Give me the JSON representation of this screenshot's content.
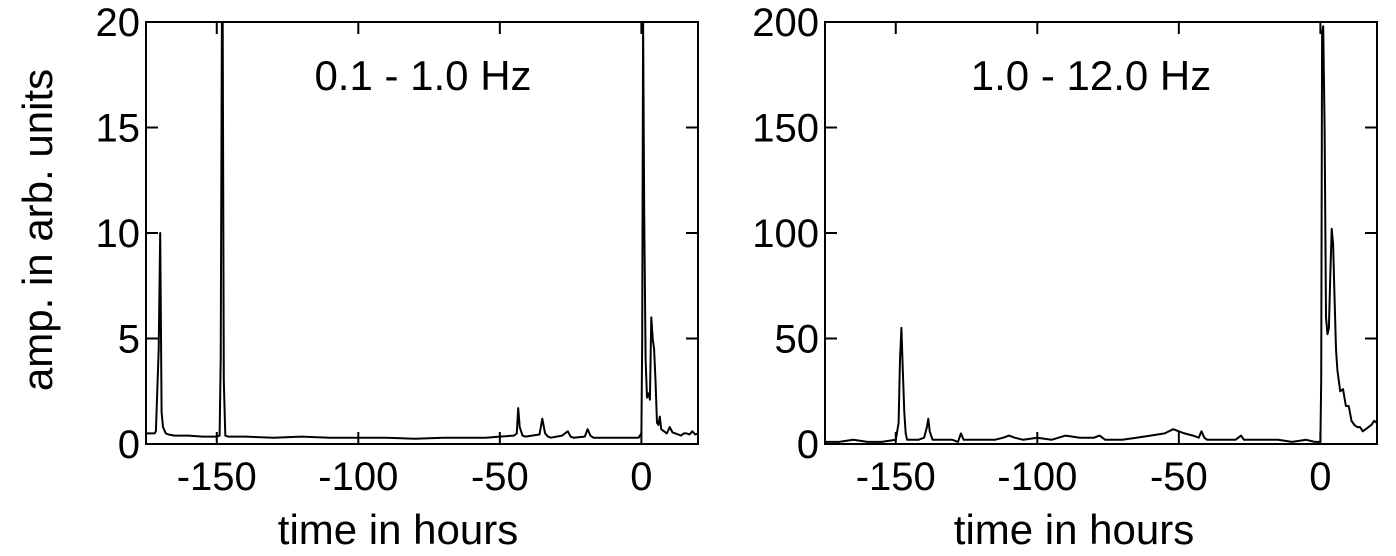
{
  "shared": {
    "ylabel": "amp. in arb. units"
  },
  "chart_data": [
    {
      "type": "line",
      "title": "0.1 - 1.0 Hz",
      "xlabel": "time in hours",
      "ylabel": "amp. in arb. units",
      "xlim": [
        -175,
        20
      ],
      "ylim": [
        0,
        20
      ],
      "xticks": [
        -150,
        -100,
        -50,
        0
      ],
      "yticks": [
        0,
        5,
        10,
        15,
        20
      ],
      "grid": false,
      "series": [
        {
          "x": [
            -175,
            -172,
            -171.5,
            -170.5,
            -170,
            -169.5,
            -169,
            -168,
            -167,
            -165,
            -160,
            -155,
            -150,
            -149,
            -148.6,
            -148.2,
            -147.9,
            -147.5,
            -147,
            -146,
            -145,
            -140,
            -130,
            -120,
            -110,
            -100,
            -90,
            -80,
            -70,
            -60,
            -55,
            -50,
            -45,
            -44,
            -43.5,
            -43,
            -42,
            -41,
            -36,
            -35,
            -34,
            -33,
            -32,
            -28,
            -26,
            -25,
            -24,
            -20,
            -19,
            -18,
            -17,
            -10,
            -2,
            -1,
            0,
            0.3,
            0.6,
            1,
            1.5,
            2,
            2.5,
            3,
            3.5,
            4,
            4.5,
            5,
            5.5,
            6,
            6.5,
            7,
            8,
            9,
            10,
            11,
            12,
            13,
            14,
            15,
            16,
            17,
            18,
            19,
            20
          ],
          "y": [
            0.5,
            0.5,
            0.6,
            4.5,
            10,
            1.5,
            0.8,
            0.5,
            0.45,
            0.4,
            0.4,
            0.35,
            0.35,
            0.4,
            4,
            20,
            20,
            3,
            0.4,
            0.35,
            0.35,
            0.35,
            0.3,
            0.35,
            0.3,
            0.3,
            0.3,
            0.25,
            0.3,
            0.3,
            0.3,
            0.35,
            0.4,
            0.5,
            1.7,
            0.8,
            0.4,
            0.35,
            0.45,
            1.2,
            0.5,
            0.35,
            0.3,
            0.4,
            0.6,
            0.35,
            0.3,
            0.35,
            0.7,
            0.4,
            0.3,
            0.3,
            0.3,
            0.3,
            0.5,
            5,
            20,
            11,
            4,
            2.2,
            2.4,
            2.1,
            6,
            5,
            4.5,
            3,
            1,
            0.9,
            1.3,
            0.7,
            0.6,
            0.5,
            0.8,
            0.55,
            0.5,
            0.45,
            0.4,
            0.5,
            0.5,
            0.45,
            0.6,
            0.45,
            0.5
          ]
        }
      ]
    },
    {
      "type": "line",
      "title": "1.0 - 12.0 Hz",
      "xlabel": "time in hours",
      "ylabel": "",
      "xlim": [
        -175,
        20
      ],
      "ylim": [
        0,
        200
      ],
      "xticks": [
        -150,
        -100,
        -50,
        0
      ],
      "yticks": [
        0,
        50,
        100,
        150,
        200
      ],
      "grid": false,
      "series": [
        {
          "x": [
            -175,
            -170,
            -165,
            -160,
            -155,
            -150,
            -149,
            -148.5,
            -148,
            -147.5,
            -147,
            -146.5,
            -146,
            -145,
            -142,
            -140,
            -139,
            -138.5,
            -138,
            -137,
            -135,
            -130,
            -128,
            -127,
            -126,
            -120,
            -115,
            -112,
            -110,
            -108,
            -105,
            -100,
            -95,
            -90,
            -85,
            -80,
            -78,
            -76,
            -70,
            -65,
            -60,
            -55,
            -52,
            -50,
            -48,
            -45,
            -43,
            -42,
            -41,
            -40,
            -35,
            -30,
            -28,
            -27,
            -20,
            -15,
            -10,
            -5,
            -2,
            0,
            0.3,
            0.6,
            1,
            1.5,
            2,
            2.5,
            3,
            3.5,
            4,
            4.5,
            5,
            5.5,
            6,
            7,
            8,
            9,
            10,
            11,
            12,
            13,
            14,
            15,
            16,
            17,
            18,
            19,
            20
          ],
          "y": [
            1,
            1,
            2,
            1,
            1,
            2,
            10,
            40,
            55,
            35,
            15,
            5,
            2,
            2,
            2,
            3,
            8,
            12,
            6,
            2,
            2,
            2,
            1,
            5,
            2,
            2,
            2,
            3,
            4,
            3,
            2,
            3,
            2,
            4,
            3,
            3,
            4,
            2,
            2,
            3,
            4,
            5,
            7,
            6,
            5,
            4,
            3,
            6,
            3,
            2,
            2,
            2,
            4,
            2,
            2,
            2,
            1,
            2,
            1,
            1,
            30,
            195,
            198,
            150,
            60,
            52,
            55,
            80,
            102,
            95,
            70,
            45,
            35,
            25,
            26,
            18,
            18,
            11,
            9,
            8,
            8,
            6,
            7,
            8,
            9,
            11,
            10
          ]
        }
      ]
    }
  ]
}
